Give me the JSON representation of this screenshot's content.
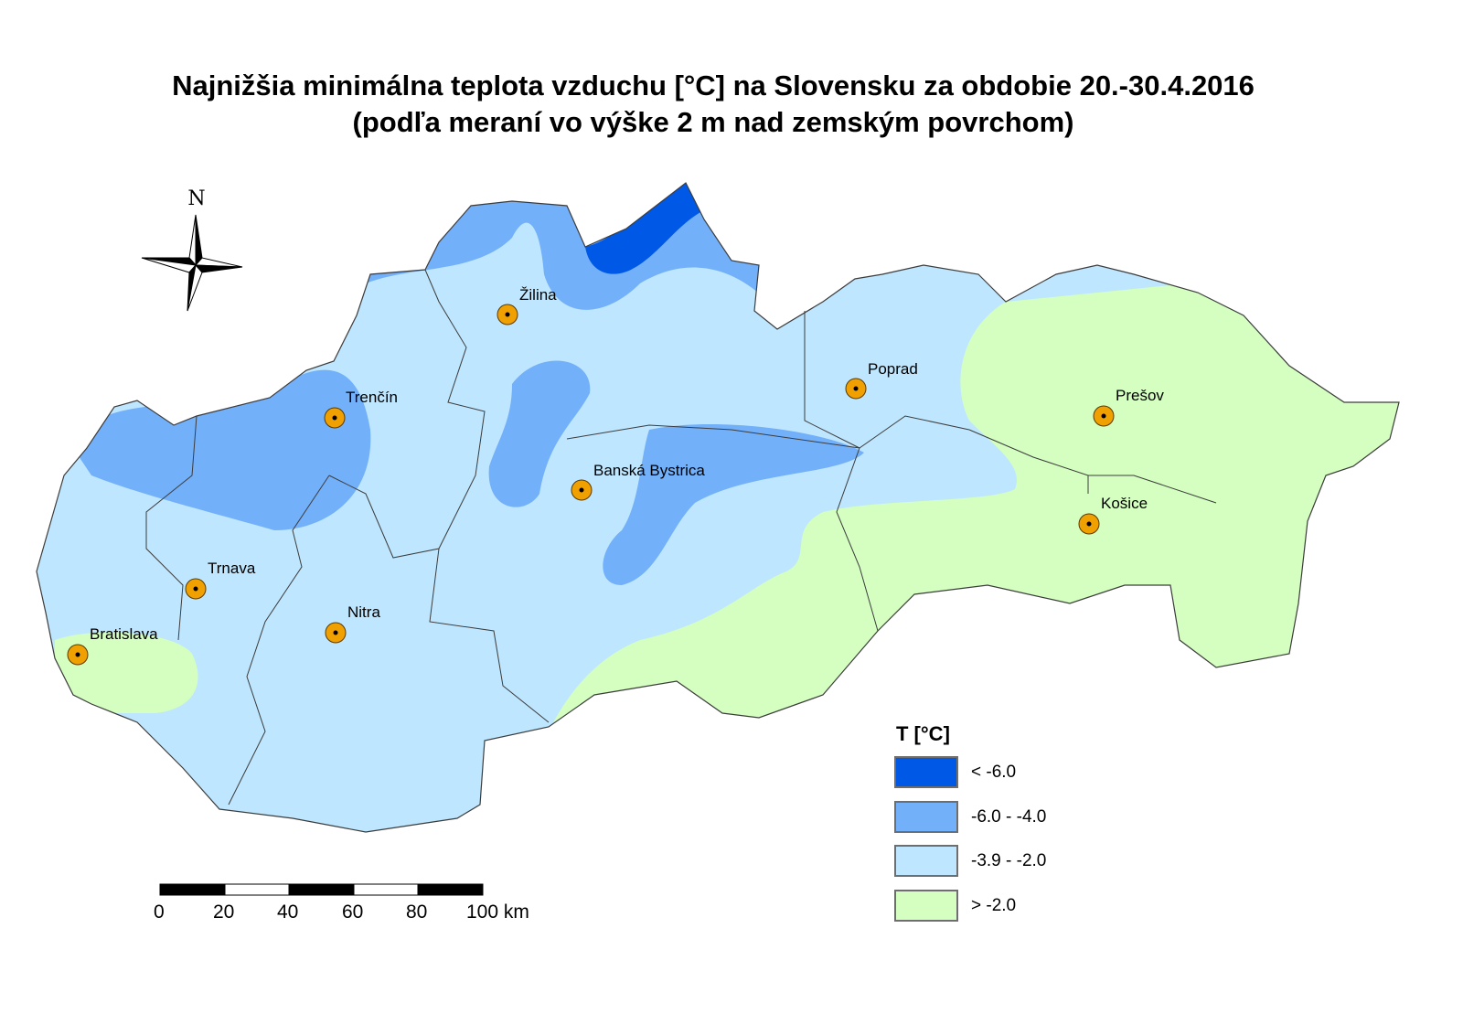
{
  "title": {
    "line1": "Najnižšia minimálna teplota vzduchu [°C] na Slovensku za obdobie 20.-30.4.2016",
    "line2": "(podľa meraní vo výške 2 m nad zemským povrchom)"
  },
  "north_arrow": {
    "label": "N",
    "icon": "compass-rose-icon"
  },
  "cities": [
    {
      "name": "Žilina"
    },
    {
      "name": "Trenčín"
    },
    {
      "name": "Poprad"
    },
    {
      "name": "Prešov"
    },
    {
      "name": "Banská Bystrica"
    },
    {
      "name": "Košice"
    },
    {
      "name": "Trnava"
    },
    {
      "name": "Nitra"
    },
    {
      "name": "Bratislava"
    }
  ],
  "legend": {
    "title": "T [°C]",
    "items": [
      {
        "label": "< -6.0",
        "color": "#0059e6"
      },
      {
        "label": "-6.0 - -4.0",
        "color": "#73b0fa"
      },
      {
        "label": "-3.9 - -2.0",
        "color": "#bee6fe"
      },
      {
        "label": "> -2.0",
        "color": "#d4ffc1"
      }
    ]
  },
  "scale_bar": {
    "ticks": [
      "0",
      "20",
      "40",
      "60",
      "80",
      "100 km"
    ]
  },
  "colors": {
    "city_marker": "#f0a000",
    "boundary": "#3c3c3c"
  }
}
